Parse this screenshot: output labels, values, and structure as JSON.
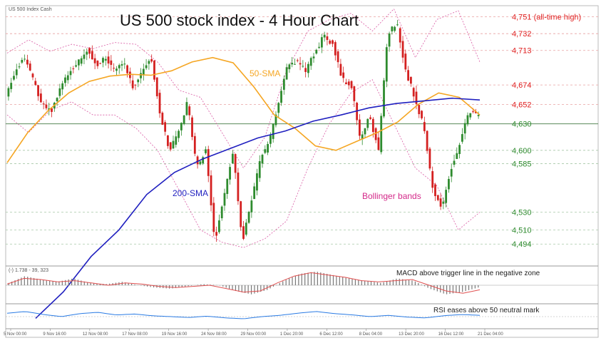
{
  "header": {
    "title": "US 500 stock index - 4 Hour Chart",
    "instrument": "US 500 Index Cash"
  },
  "macd_header": "(-) 1.738 - 39, 323",
  "colors": {
    "bull": "#2e8b2e",
    "bear": "#d42020",
    "sma50": "#f5a623",
    "sma200": "#1f1fbf",
    "bollinger": "#d95aa4",
    "resistance": "#e02020",
    "support": "#2e8b2e",
    "rsi": "#2a7be4",
    "macd_signal": "#e05050"
  },
  "chart_data": [
    {
      "type": "candlestick",
      "title": "US 500 stock index - 4 Hour Chart",
      "ylim": [
        4470,
        4762
      ],
      "x_ticks": [
        "5 Nov 00:00",
        "9 Nov 16:00",
        "12 Nov 08:00",
        "17 Nov 08:00",
        "19 Nov 16:00",
        "24 Nov 08:00",
        "29 Nov 00:00",
        "1 Dec 20:00",
        "6 Dec 12:00",
        "8 Dec 04:00",
        "13 Dec 20:00",
        "16 Dec 12:00",
        "21 Dec 04:00"
      ],
      "levels": [
        {
          "value": 4751,
          "label": "4,751 (all-time high)",
          "kind": "resistance",
          "style": "dashed"
        },
        {
          "value": 4732,
          "label": "4,732",
          "kind": "resistance",
          "style": "dashed"
        },
        {
          "value": 4713,
          "label": "4,713",
          "kind": "resistance",
          "style": "dashed"
        },
        {
          "value": 4674,
          "label": "4,674",
          "kind": "resistance",
          "style": "dashed"
        },
        {
          "value": 4652,
          "label": "4,652",
          "kind": "resistance",
          "style": "dashed"
        },
        {
          "value": 4630,
          "label": "4,630",
          "kind": "support",
          "style": "solid"
        },
        {
          "value": 4600,
          "label": "4,600",
          "kind": "support",
          "style": "dashed"
        },
        {
          "value": 4585,
          "label": "4,585",
          "kind": "support",
          "style": "dashed"
        },
        {
          "value": 4530,
          "label": "4,530",
          "kind": "support",
          "style": "dashed"
        },
        {
          "value": 4510,
          "label": "4,510",
          "kind": "support",
          "style": "dashed"
        },
        {
          "value": 4494,
          "label": "4,494",
          "kind": "support",
          "style": "dashed"
        }
      ],
      "price_keypoints": [
        4660,
        4690,
        4705,
        4680,
        4650,
        4645,
        4670,
        4690,
        4700,
        4715,
        4695,
        4705,
        4690,
        4700,
        4672,
        4690,
        4705,
        4640,
        4600,
        4620,
        4655,
        4580,
        4600,
        4495,
        4550,
        4600,
        4496,
        4540,
        4590,
        4610,
        4655,
        4695,
        4700,
        4690,
        4710,
        4730,
        4720,
        4680,
        4675,
        4610,
        4640,
        4600,
        4730,
        4745,
        4690,
        4660,
        4625,
        4555,
        4535,
        4580,
        4610,
        4645,
        4640
      ],
      "sma50_keypoints": [
        4586,
        4620,
        4645,
        4665,
        4678,
        4684,
        4686,
        4685,
        4690,
        4700,
        4705,
        4699,
        4672,
        4640,
        4625,
        4605,
        4600,
        4610,
        4620,
        4632,
        4652,
        4665,
        4660,
        4640
      ],
      "sma200_keypoints": [
        4410,
        4440,
        4480,
        4510,
        4550,
        4575,
        4590,
        4602,
        4614,
        4622,
        4633,
        4640,
        4648,
        4653,
        4656,
        4659,
        4657
      ],
      "bollinger_upper_keypoints": [
        4710,
        4725,
        4712,
        4720,
        4715,
        4722,
        4720,
        4700,
        4668,
        4660,
        4620,
        4580,
        4615,
        4690,
        4735,
        4748,
        4755,
        4735,
        4760,
        4705,
        4748,
        4758,
        4700
      ],
      "bollinger_lower_keypoints": [
        4640,
        4620,
        4645,
        4655,
        4640,
        4640,
        4625,
        4600,
        4555,
        4510,
        4496,
        4490,
        4500,
        4520,
        4580,
        4630,
        4665,
        4680,
        4630,
        4580,
        4560,
        4510,
        4530
      ],
      "annotations": [
        "50-SMA",
        "200-SMA",
        "Bollinger bands"
      ]
    },
    {
      "type": "histogram",
      "title": "MACD above trigger line in the negative zone",
      "histogram_keypoints": [
        2,
        8,
        5,
        3,
        6,
        2,
        1,
        3,
        0,
        -2,
        -3,
        -1,
        1,
        0,
        -5,
        -8,
        -4,
        4,
        10,
        12,
        9,
        6,
        4,
        2,
        6,
        4,
        -3,
        -8,
        -6,
        -2
      ],
      "signal_keypoints": [
        1,
        6,
        5,
        3,
        4,
        2,
        0,
        2,
        1,
        -1,
        -2,
        -1,
        0,
        -3,
        -6,
        -5,
        2,
        8,
        11,
        9,
        7,
        4,
        3,
        4,
        5,
        0,
        -5,
        -7,
        -4
      ]
    },
    {
      "type": "line",
      "title": "RSI eases above 50 neutral mark",
      "rsi_keypoints": [
        58,
        62,
        55,
        50,
        57,
        60,
        54,
        56,
        52,
        50,
        48,
        51,
        47,
        45,
        50,
        53,
        58,
        62,
        57,
        54,
        50,
        53,
        49,
        47,
        52,
        55,
        53
      ]
    }
  ]
}
